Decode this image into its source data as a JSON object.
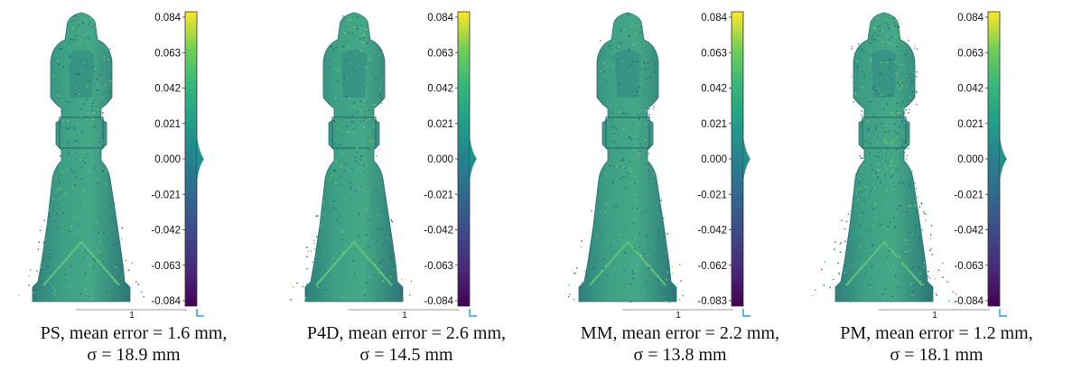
{
  "colors": {
    "viridis_low": "#440154",
    "viridis_mid": "#21918c",
    "viridis_high": "#fde725",
    "model_base": "#3f9a86",
    "corner_icon": "#22a8e0"
  },
  "panels": [
    {
      "key": "ps",
      "caption_line1": "PS, mean error = 1.6 mm,",
      "caption_line2": "σ = 18.9 mm",
      "scale_label": "1",
      "colorbar_ticks": [
        "0.084",
        "0.063",
        "0.042",
        "0.021",
        "0.000",
        "-0.021",
        "-0.042",
        "-0.063",
        "-0.084"
      ]
    },
    {
      "key": "p4d",
      "caption_line1": "P4D, mean error = 2.6 mm,",
      "caption_line2": "σ = 14.5 mm",
      "scale_label": "1",
      "colorbar_ticks": [
        "0.084",
        "0.063",
        "0.042",
        "0.021",
        "0.000",
        "-0.021",
        "-0.042",
        "-0.063",
        "-0.084"
      ]
    },
    {
      "key": "mm",
      "caption_line1": "MM, mean error = 2.2 mm,",
      "caption_line2": "σ = 13.8 mm",
      "scale_label": "1",
      "colorbar_ticks": [
        "0.084",
        "0.063",
        "0.042",
        "0.021",
        "0.000",
        "-0.021",
        "-0.042",
        "-0.062",
        "-0.083"
      ]
    },
    {
      "key": "pm",
      "caption_line1": "PM, mean error = 1.2 mm,",
      "caption_line2": "σ = 18.1 mm",
      "scale_label": "1",
      "colorbar_ticks": [
        "0.084",
        "0.063",
        "0.042",
        "0.021",
        "0.000",
        "-0.021",
        "-0.042",
        "-0.063",
        "-0.084"
      ]
    }
  ]
}
